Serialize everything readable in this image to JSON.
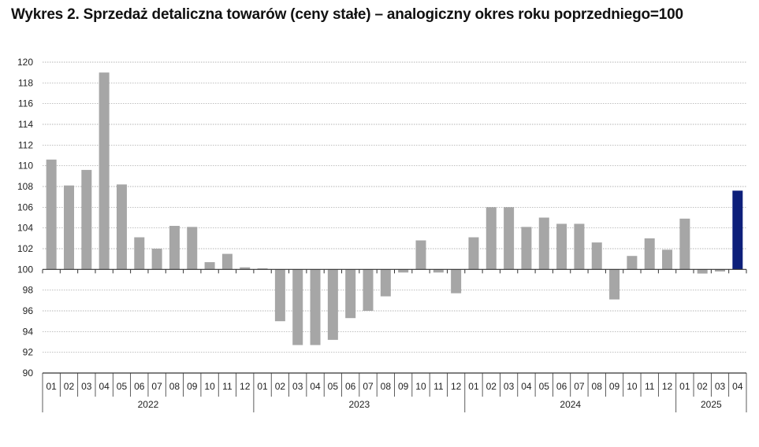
{
  "title": "Wykres 2. Sprzedaż detaliczna towarów (ceny stałe) – analogiczny okres roku poprzedniego=100",
  "colors": {
    "bar": "#a6a6a6",
    "highlight": "#0d1f7a",
    "grid": "#9a9a9a",
    "axis": "#333333"
  },
  "chart_data": {
    "type": "bar",
    "title": "Wykres 2. Sprzedaż detaliczna towarów (ceny stałe) – analogiczny okres roku poprzedniego=100",
    "xlabel": "",
    "ylabel": "",
    "baseline": 100,
    "ylim": [
      90,
      120
    ],
    "yticks": [
      "90",
      "92",
      "94",
      "96",
      "98",
      "100",
      "102",
      "104",
      "106",
      "108",
      "110",
      "112",
      "114",
      "116",
      "118",
      "120"
    ],
    "grid": true,
    "highlight_index": 39,
    "categories": [
      "01",
      "02",
      "03",
      "04",
      "05",
      "06",
      "07",
      "08",
      "09",
      "10",
      "11",
      "12",
      "01",
      "02",
      "03",
      "04",
      "05",
      "06",
      "07",
      "08",
      "09",
      "10",
      "11",
      "12",
      "01",
      "02",
      "03",
      "04",
      "05",
      "06",
      "07",
      "08",
      "09",
      "10",
      "11",
      "12",
      "01",
      "02",
      "03",
      "04"
    ],
    "years": [
      {
        "label": "2022",
        "start": 0,
        "count": 12
      },
      {
        "label": "2023",
        "start": 12,
        "count": 12
      },
      {
        "label": "2024",
        "start": 24,
        "count": 12
      },
      {
        "label": "2025",
        "start": 36,
        "count": 4
      }
    ],
    "values": [
      110.6,
      108.1,
      109.6,
      119.0,
      108.2,
      103.1,
      102.0,
      104.2,
      104.1,
      100.7,
      101.5,
      100.2,
      100.1,
      95.0,
      92.7,
      92.7,
      93.2,
      95.3,
      96.0,
      97.4,
      99.7,
      102.8,
      99.7,
      97.7,
      103.1,
      106.0,
      106.0,
      104.1,
      105.0,
      104.4,
      104.4,
      102.6,
      97.1,
      101.3,
      103.0,
      101.9,
      104.9,
      99.6,
      99.8,
      107.6
    ]
  }
}
